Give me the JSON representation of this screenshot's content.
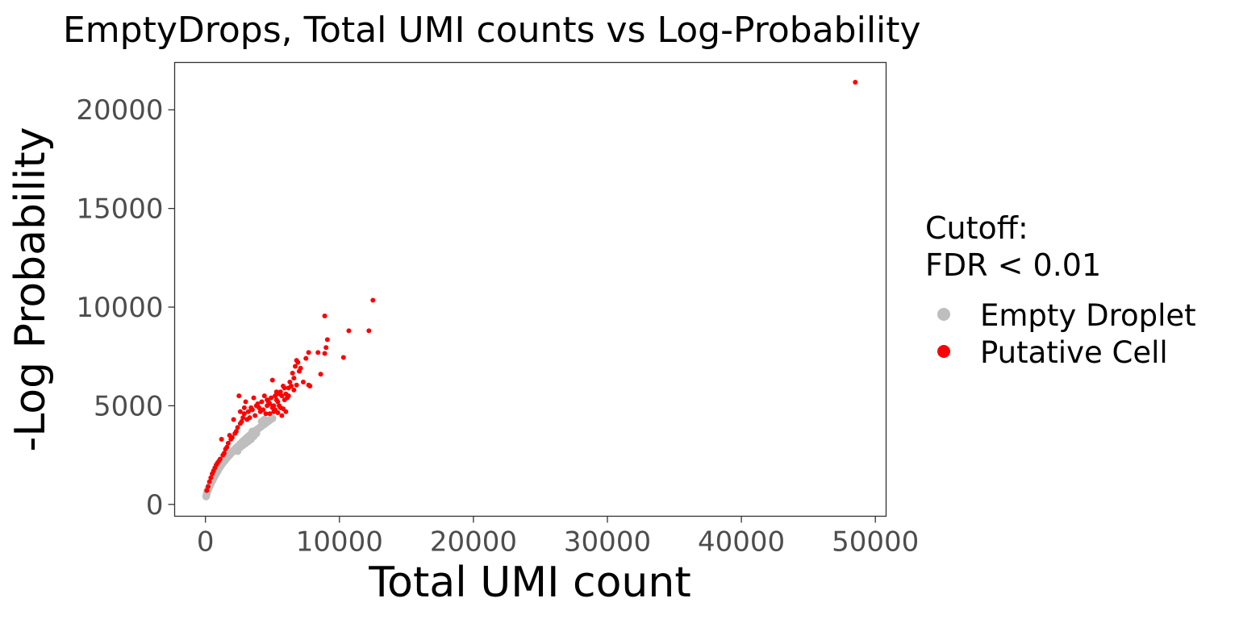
{
  "chart_data": {
    "type": "scatter",
    "title": "EmptyDrops, Total UMI counts vs Log-Probability",
    "xlabel": "Total UMI count",
    "ylabel": "-Log Probability",
    "xlim": [
      -2300,
      50800
    ],
    "ylim": [
      -600,
      22400
    ],
    "x_ticks": [
      0,
      10000,
      20000,
      30000,
      40000,
      50000
    ],
    "x_tick_labels": [
      "0",
      "10000",
      "20000",
      "30000",
      "40000",
      "50000"
    ],
    "y_ticks": [
      0,
      5000,
      10000,
      15000,
      20000
    ],
    "y_tick_labels": [
      "0",
      "5000",
      "10000",
      "15000",
      "20000"
    ],
    "grid": false,
    "legend": {
      "title_lines": [
        "Cutoff:",
        "FDR < 0.01"
      ],
      "placement": "right",
      "entries": [
        {
          "label": "Empty Droplet",
          "color": "#bebebe"
        },
        {
          "label": "Putative Cell",
          "color": "#ff0000"
        }
      ]
    },
    "series": [
      {
        "name": "Empty Droplet",
        "color": "#bebebe",
        "points": [
          [
            50,
            400
          ],
          [
            80,
            500
          ],
          [
            120,
            600
          ],
          [
            150,
            680
          ],
          [
            200,
            760
          ],
          [
            250,
            830
          ],
          [
            300,
            900
          ],
          [
            350,
            970
          ],
          [
            400,
            1050
          ],
          [
            450,
            1120
          ],
          [
            500,
            1180
          ],
          [
            550,
            1250
          ],
          [
            600,
            1320
          ],
          [
            650,
            1380
          ],
          [
            700,
            1450
          ],
          [
            750,
            1500
          ],
          [
            800,
            1560
          ],
          [
            850,
            1620
          ],
          [
            900,
            1680
          ],
          [
            950,
            1740
          ],
          [
            1000,
            1800
          ],
          [
            1100,
            1900
          ],
          [
            1200,
            2000
          ],
          [
            1300,
            2100
          ],
          [
            1400,
            2180
          ],
          [
            1500,
            2270
          ],
          [
            1600,
            2350
          ],
          [
            1700,
            2430
          ],
          [
            1800,
            2500
          ],
          [
            1900,
            2580
          ],
          [
            2000,
            2650
          ],
          [
            2100,
            2730
          ],
          [
            2200,
            2800
          ],
          [
            2300,
            2870
          ],
          [
            2400,
            2940
          ],
          [
            2500,
            3000
          ],
          [
            2600,
            3070
          ],
          [
            2700,
            3130
          ],
          [
            2800,
            3200
          ],
          [
            2900,
            3260
          ],
          [
            3000,
            3320
          ],
          [
            3100,
            3380
          ],
          [
            3200,
            3440
          ],
          [
            3300,
            3500
          ],
          [
            3400,
            3550
          ],
          [
            3500,
            3600
          ],
          [
            3600,
            3660
          ],
          [
            3700,
            3710
          ],
          [
            3800,
            3770
          ],
          [
            3900,
            3820
          ],
          [
            4000,
            3870
          ],
          [
            4100,
            3920
          ],
          [
            4200,
            3970
          ],
          [
            4300,
            4020
          ],
          [
            4400,
            4070
          ],
          [
            4500,
            4120
          ],
          [
            4600,
            4170
          ],
          [
            4700,
            4220
          ],
          [
            4800,
            4270
          ],
          [
            4900,
            4320
          ],
          [
            5000,
            4360
          ],
          [
            3200,
            3200
          ],
          [
            3400,
            3300
          ],
          [
            3600,
            3450
          ],
          [
            2800,
            3000
          ],
          [
            2600,
            2900
          ],
          [
            4200,
            4200
          ],
          [
            3800,
            3600
          ],
          [
            3000,
            3100
          ],
          [
            3500,
            3700
          ],
          [
            2400,
            2700
          ],
          [
            4400,
            4300
          ]
        ]
      },
      {
        "name": "Putative Cell",
        "color": "#ff0000",
        "points": [
          [
            48500,
            21400
          ],
          [
            12500,
            10350
          ],
          [
            10700,
            8800
          ],
          [
            12200,
            8800
          ],
          [
            8900,
            9550
          ],
          [
            10300,
            7450
          ],
          [
            9100,
            8350
          ],
          [
            9000,
            7950
          ],
          [
            8900,
            7650
          ],
          [
            8400,
            7700
          ],
          [
            8600,
            6600
          ],
          [
            7700,
            7700
          ],
          [
            7500,
            7400
          ],
          [
            7300,
            6200
          ],
          [
            7700,
            6050
          ],
          [
            7800,
            6000
          ],
          [
            6800,
            7300
          ],
          [
            6900,
            7200
          ],
          [
            6500,
            6650
          ],
          [
            7000,
            6750
          ],
          [
            6200,
            5900
          ],
          [
            6300,
            6200
          ],
          [
            6600,
            6400
          ],
          [
            6800,
            6050
          ],
          [
            6100,
            5400
          ],
          [
            5800,
            6000
          ],
          [
            5900,
            5900
          ],
          [
            6000,
            5600
          ],
          [
            5600,
            5700
          ],
          [
            5700,
            5500
          ],
          [
            5300,
            5700
          ],
          [
            5200,
            5500
          ],
          [
            5400,
            5200
          ],
          [
            5500,
            5000
          ],
          [
            5600,
            4900
          ],
          [
            5800,
            4850
          ],
          [
            6000,
            4700
          ],
          [
            5700,
            4500
          ],
          [
            5400,
            4650
          ],
          [
            5100,
            4700
          ],
          [
            5000,
            6300
          ],
          [
            4900,
            5400
          ],
          [
            4800,
            5100
          ],
          [
            4700,
            5200
          ],
          [
            4600,
            5000
          ],
          [
            4400,
            5500
          ],
          [
            4200,
            5200
          ],
          [
            4000,
            4900
          ],
          [
            3900,
            5100
          ],
          [
            3800,
            5000
          ],
          [
            3600,
            5400
          ],
          [
            3500,
            4800
          ],
          [
            3400,
            4900
          ],
          [
            3200,
            4700
          ],
          [
            3000,
            5200
          ],
          [
            2900,
            4600
          ],
          [
            2800,
            4400
          ],
          [
            2700,
            4200
          ],
          [
            2600,
            4100
          ],
          [
            2500,
            5500
          ],
          [
            2600,
            4700
          ],
          [
            2400,
            3900
          ],
          [
            2300,
            3700
          ],
          [
            2200,
            3600
          ],
          [
            2100,
            4300
          ],
          [
            2000,
            3400
          ],
          [
            1900,
            3300
          ],
          [
            1800,
            3500
          ],
          [
            1700,
            3100
          ],
          [
            1600,
            2900
          ],
          [
            1500,
            2800
          ],
          [
            1400,
            2600
          ],
          [
            1300,
            2500
          ],
          [
            1200,
            3300
          ],
          [
            1100,
            2300
          ],
          [
            1000,
            2200
          ],
          [
            900,
            2100
          ],
          [
            800,
            2000
          ],
          [
            700,
            1850
          ],
          [
            600,
            1700
          ],
          [
            500,
            1550
          ],
          [
            400,
            1350
          ],
          [
            300,
            1150
          ],
          [
            200,
            900
          ],
          [
            100,
            700
          ],
          [
            4500,
            4600
          ],
          [
            4100,
            4700
          ],
          [
            5200,
            4800
          ],
          [
            5500,
            5600
          ],
          [
            6400,
            6000
          ],
          [
            7100,
            6900
          ],
          [
            4300,
            4800
          ],
          [
            3700,
            4500
          ],
          [
            5900,
            5300
          ],
          [
            6700,
            7000
          ],
          [
            3300,
            4400
          ],
          [
            2900,
            4900
          ],
          [
            4600,
            5300
          ],
          [
            5300,
            5300
          ],
          [
            5000,
            4900
          ],
          [
            6200,
            5500
          ],
          [
            6600,
            5800
          ],
          [
            3100,
            4300
          ],
          [
            4800,
            4600
          ],
          [
            5100,
            5000
          ]
        ]
      }
    ]
  }
}
